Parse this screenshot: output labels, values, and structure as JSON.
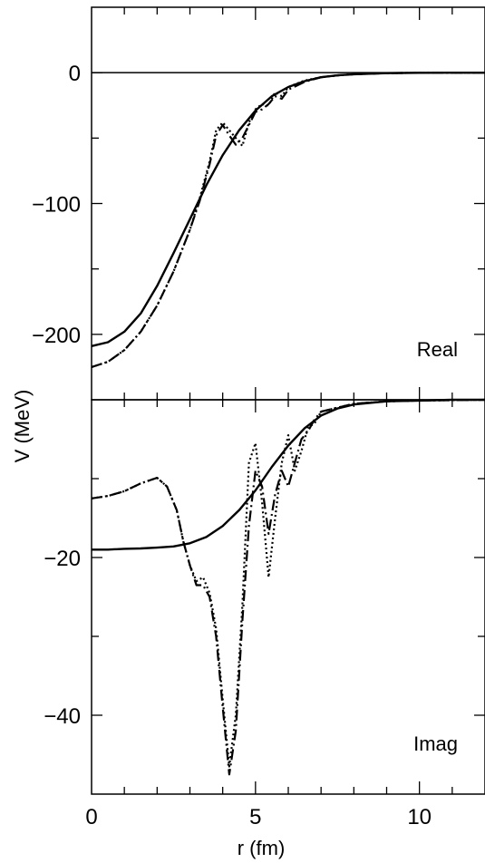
{
  "chart_data": [
    {
      "type": "line",
      "panel_label": "Real",
      "xlabel": "r (fm)",
      "ylabel": "V (MeV)",
      "xlim": [
        0,
        12
      ],
      "ylim": [
        -250,
        50
      ],
      "xticks": [
        0,
        5,
        10
      ],
      "yticks": [
        0,
        -100,
        -200
      ],
      "ytick_labels": [
        "0",
        "−100",
        "−200"
      ],
      "zero_line": true,
      "series": [
        {
          "style": "solid",
          "x": [
            0,
            0.5,
            1,
            1.5,
            2,
            2.5,
            3,
            3.5,
            4,
            4.5,
            5,
            5.5,
            6,
            6.5,
            7,
            7.5,
            8,
            9,
            10,
            11,
            12
          ],
          "y": [
            -209,
            -206,
            -198,
            -184,
            -163,
            -138,
            -112,
            -86,
            -63,
            -44,
            -29,
            -18,
            -11,
            -6.5,
            -3.5,
            -2,
            -1.2,
            -0.4,
            -0.1,
            0,
            0
          ]
        },
        {
          "style": "dash-dot",
          "x": [
            0,
            0.5,
            1,
            1.5,
            2,
            2.5,
            3,
            3.3,
            3.6,
            3.8,
            4.0,
            4.2,
            4.4,
            4.6,
            4.8,
            5.0,
            5.2,
            5.4,
            5.6,
            5.8,
            6.0,
            6.5,
            7,
            7.5,
            8,
            9,
            10,
            12
          ],
          "y": [
            -225,
            -221,
            -212,
            -198,
            -178,
            -152,
            -120,
            -98,
            -70,
            -48,
            -40,
            -48,
            -55,
            -50,
            -40,
            -30,
            -28,
            -24,
            -18,
            -20,
            -13,
            -7,
            -3.5,
            -2,
            -1.2,
            -0.4,
            -0.1,
            0
          ]
        },
        {
          "style": "dotted",
          "x": [
            0,
            0.5,
            1,
            1.5,
            2,
            2.5,
            3,
            3.3,
            3.6,
            3.8,
            4.0,
            4.2,
            4.4,
            4.6,
            4.8,
            5.0,
            5.2,
            5.4,
            5.6,
            5.8,
            6.0,
            6.5,
            7,
            7.5,
            8,
            9,
            10,
            12
          ],
          "y": [
            -225,
            -221,
            -212,
            -198,
            -178,
            -152,
            -120,
            -96,
            -68,
            -44,
            -38,
            -44,
            -50,
            -56,
            -38,
            -28,
            -24,
            -25,
            -15,
            -18,
            -11,
            -6,
            -3.5,
            -2,
            -1.2,
            -0.4,
            -0.1,
            0
          ]
        }
      ]
    },
    {
      "type": "line",
      "panel_label": "Imag",
      "xlabel": "r (fm)",
      "ylabel": "V (MeV)",
      "xlim": [
        0,
        12
      ],
      "ylim": [
        -50,
        0
      ],
      "xticks": [
        0,
        5,
        10
      ],
      "xtick_labels": [
        "0",
        "5",
        "10"
      ],
      "yticks": [
        -20,
        -40
      ],
      "ytick_labels": [
        "−20",
        "−40"
      ],
      "series": [
        {
          "style": "solid",
          "x": [
            0,
            0.5,
            1,
            1.5,
            2,
            2.5,
            3,
            3.5,
            4,
            4.5,
            5,
            5.5,
            6,
            6.5,
            7,
            7.5,
            8,
            9,
            10,
            11,
            12
          ],
          "y": [
            -19,
            -19,
            -18.9,
            -18.85,
            -18.75,
            -18.6,
            -18.2,
            -17.4,
            -16,
            -14,
            -11.5,
            -8.5,
            -5.8,
            -3.6,
            -2,
            -1.1,
            -0.6,
            -0.2,
            -0.1,
            0,
            0
          ]
        },
        {
          "style": "dash-dot",
          "x": [
            0,
            0.5,
            1,
            1.5,
            2,
            2.3,
            2.6,
            2.8,
            3.0,
            3.2,
            3.4,
            3.6,
            3.8,
            4.0,
            4.2,
            4.4,
            4.6,
            4.8,
            5.0,
            5.2,
            5.4,
            5.6,
            5.8,
            6.0,
            6.2,
            6.4,
            6.6,
            6.8,
            7,
            7.5,
            8,
            9,
            10,
            12
          ],
          "y": [
            -12.5,
            -12.2,
            -11.6,
            -10.6,
            -9.9,
            -11,
            -14,
            -18,
            -21,
            -23.5,
            -23.5,
            -25,
            -30,
            -39,
            -47.5,
            -42,
            -28,
            -16,
            -9,
            -11,
            -17,
            -12,
            -9,
            -11,
            -8,
            -5,
            -4,
            -2.5,
            -1.5,
            -1,
            -0.5,
            -0.2,
            -0.1,
            0
          ]
        },
        {
          "style": "dotted",
          "x": [
            0,
            0.5,
            1,
            1.5,
            2,
            2.3,
            2.6,
            2.8,
            3.0,
            3.2,
            3.4,
            3.6,
            3.8,
            4.0,
            4.2,
            4.4,
            4.6,
            4.8,
            5.0,
            5.2,
            5.4,
            5.6,
            5.8,
            6.0,
            6.2,
            6.4,
            6.6,
            6.8,
            7,
            7.5,
            8,
            9,
            10,
            12
          ],
          "y": [
            -12.5,
            -12.2,
            -11.6,
            -10.6,
            -9.9,
            -11,
            -14,
            -18,
            -21,
            -23,
            -22.5,
            -24.5,
            -29,
            -38,
            -46.5,
            -40,
            -26,
            -8,
            -5.5,
            -13,
            -22.5,
            -15,
            -8,
            -4.5,
            -9,
            -6.5,
            -3.5,
            -3,
            -1.5,
            -1,
            -0.5,
            -0.2,
            -0.1,
            0
          ]
        }
      ]
    }
  ]
}
